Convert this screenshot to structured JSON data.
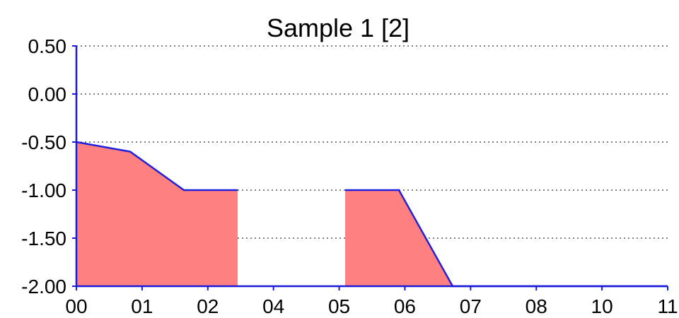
{
  "chart_data": {
    "type": "area",
    "title": "Sample 1 [2]",
    "xlabel": "",
    "ylabel": "",
    "x_tick_labels": [
      "00",
      "01",
      "02",
      "04",
      "05",
      "06",
      "07",
      "08",
      "10",
      "11"
    ],
    "y_tick_labels": [
      "0.50",
      "0.00",
      "-0.50",
      "-1.00",
      "-1.50",
      "-2.00"
    ],
    "y_ticks": [
      0.5,
      0.0,
      -0.5,
      -1.0,
      -1.5,
      -2.0
    ],
    "ylim": [
      -2.0,
      0.5
    ],
    "xlim": [
      0,
      11
    ],
    "grid": "horizontal dotted",
    "baseline": -2.0,
    "series": [
      {
        "x": [
          0,
          1,
          2,
          3,
          3,
          5,
          5,
          6,
          7,
          11
        ],
        "y": [
          -0.5,
          -0.6,
          -1.0,
          -1.0,
          null,
          null,
          -1.0,
          -1.0,
          -2.0,
          -2.0
        ]
      }
    ],
    "colors": {
      "fill": "#ff8080",
      "line": "#2020dd",
      "axis": "#1a1ad8",
      "grid": "#333333"
    }
  }
}
